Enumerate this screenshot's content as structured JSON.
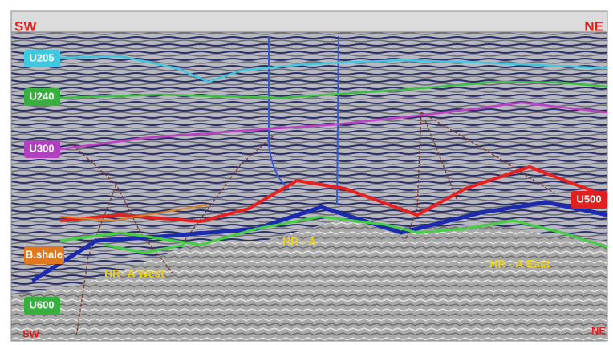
{
  "header": {
    "left": "SW",
    "right": "NE"
  },
  "horizons": [
    "U205",
    "U240",
    "U300",
    "U500",
    "B.shale",
    "U600"
  ],
  "annotations": [
    "HR- A West",
    "HR - A",
    "HR - A East"
  ],
  "footer": {
    "left": "SW",
    "right": "NE"
  }
}
